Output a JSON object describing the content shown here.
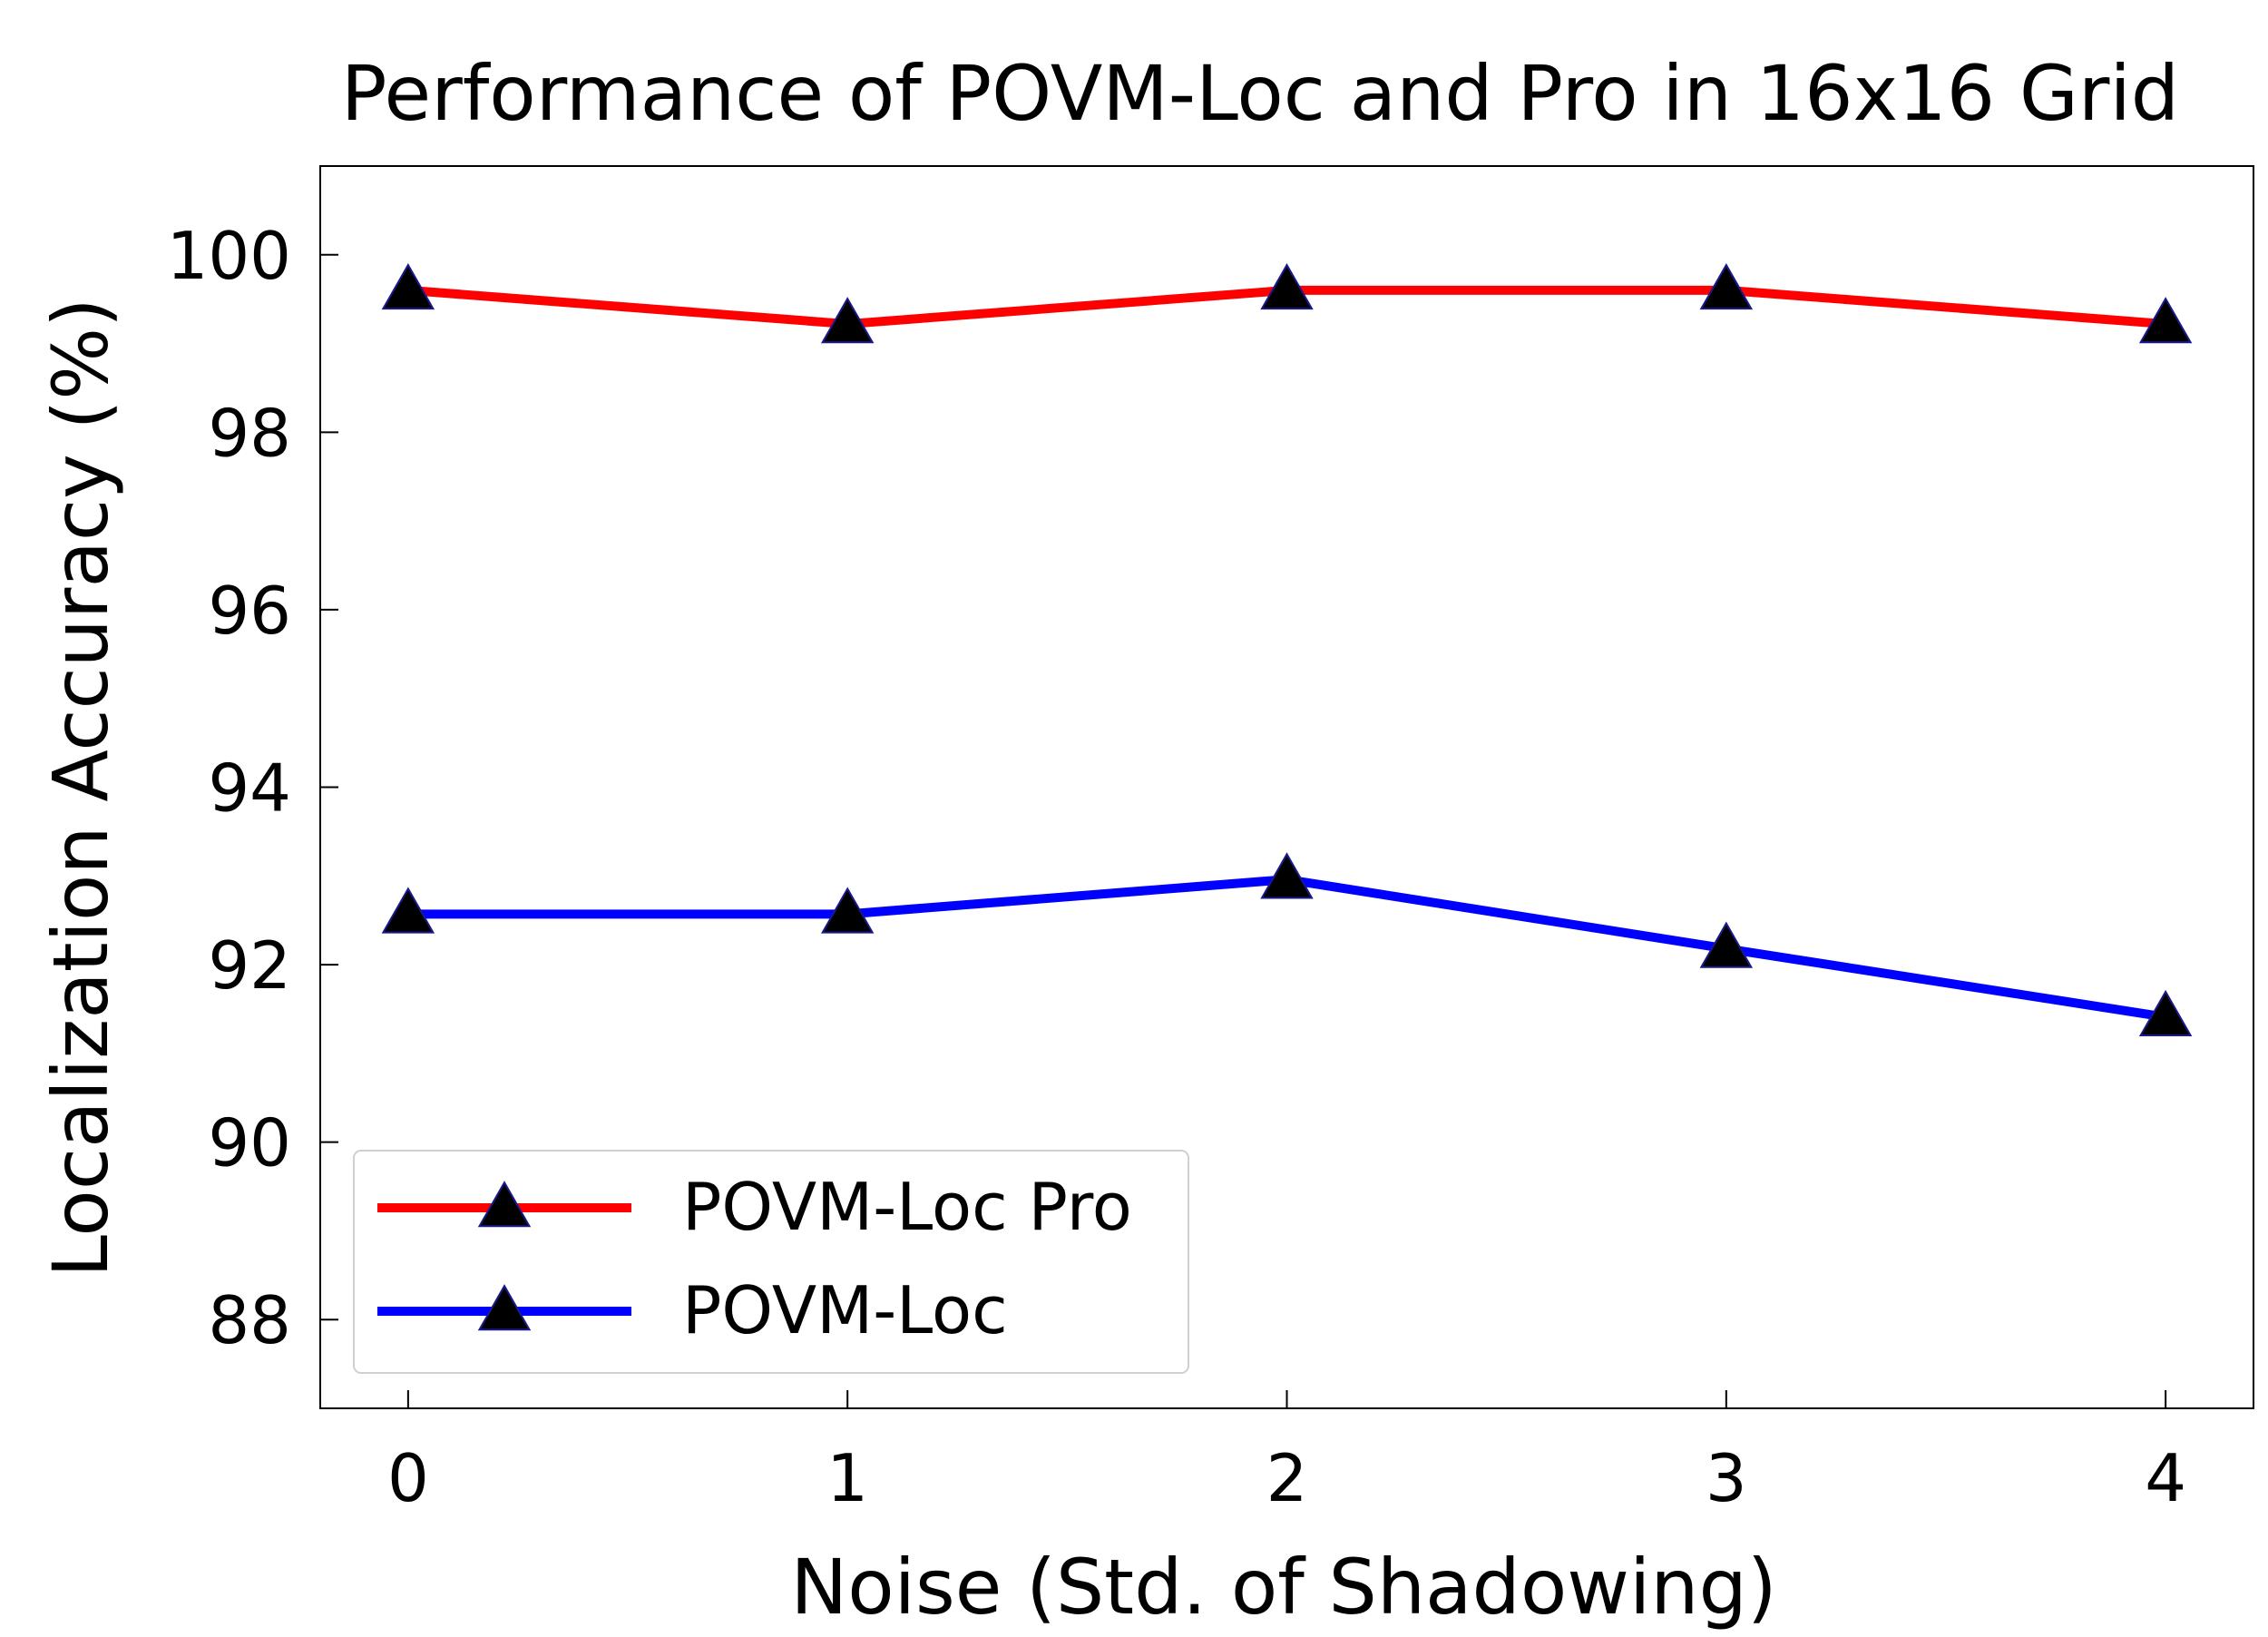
{
  "chart_data": {
    "type": "line",
    "title": "Performance of POVM-Loc and Pro in 16x16 Grid",
    "xlabel": "Noise (Std. of Shadowing)",
    "ylabel": "Localization Accuracy (%)",
    "x": [
      0,
      1,
      2,
      3,
      4
    ],
    "x_ticks": [
      "0",
      "1",
      "2",
      "3",
      "4"
    ],
    "y_ticks": [
      "88",
      "90",
      "92",
      "94",
      "96",
      "98",
      "100"
    ],
    "xlim": [
      -0.2,
      4.2
    ],
    "ylim": [
      87.0,
      101.0
    ],
    "grid": false,
    "legend_position": "lower-left",
    "series": [
      {
        "name": "POVM-Loc Pro",
        "color": "#ff0000",
        "marker": "triangle-up",
        "marker_color": "#000000",
        "values": [
          99.6,
          99.22,
          99.6,
          99.6,
          99.22
        ]
      },
      {
        "name": "POVM-Loc",
        "color": "#0000ff",
        "marker": "triangle-up",
        "marker_color": "#000000",
        "values": [
          92.57,
          92.57,
          92.96,
          92.18,
          91.41
        ]
      }
    ]
  }
}
